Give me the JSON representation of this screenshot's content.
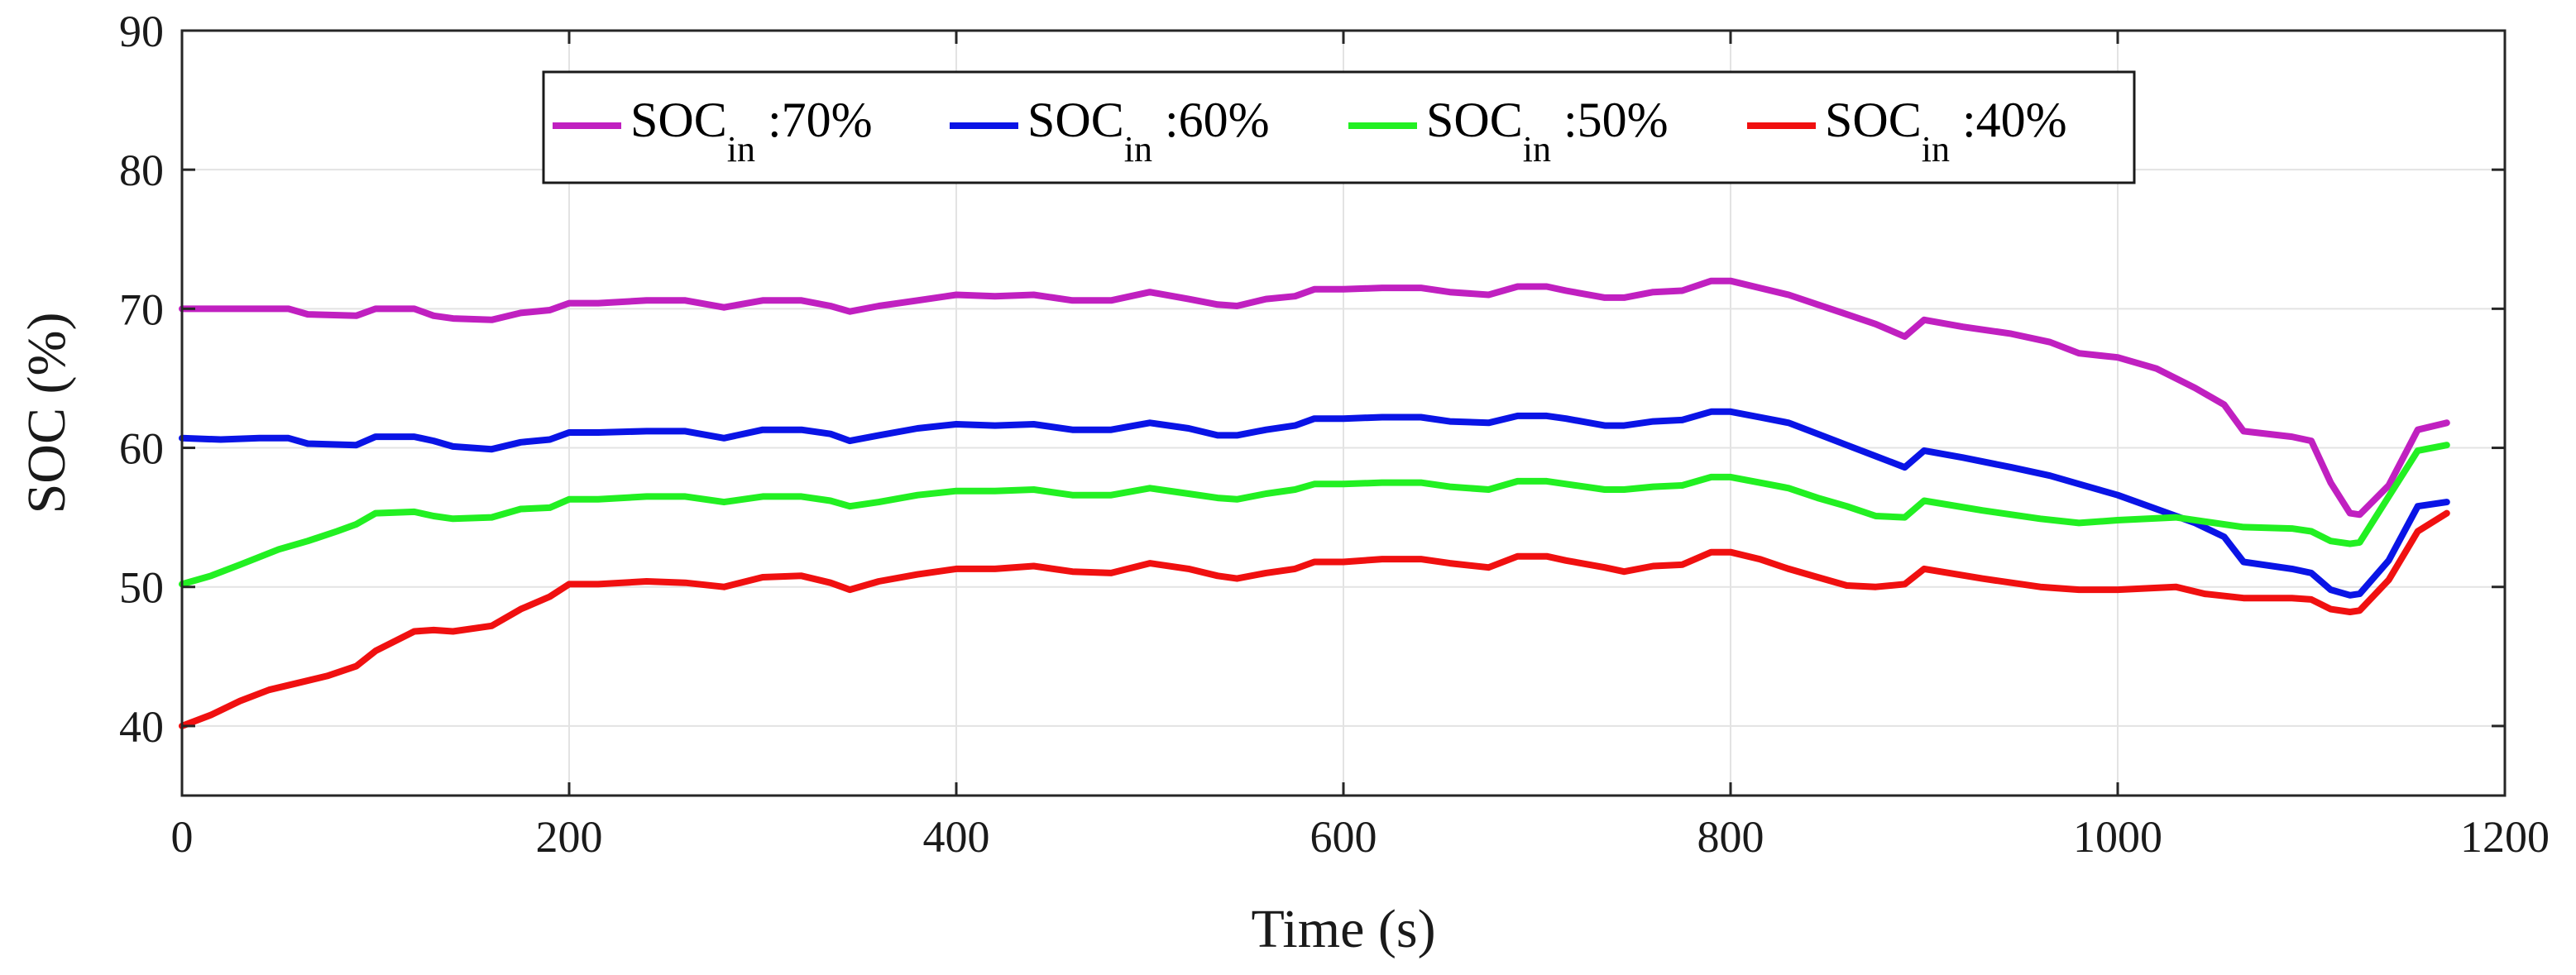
{
  "chart_data": {
    "type": "line",
    "title": "",
    "xlabel": "Time (s)",
    "ylabel": "SOC (%)",
    "xlim": [
      0,
      1200
    ],
    "ylim": [
      35,
      90
    ],
    "xticks": [
      0,
      200,
      400,
      600,
      800,
      1000,
      1200
    ],
    "yticks": [
      40,
      50,
      60,
      70,
      80,
      90
    ],
    "grid": true,
    "legend_position": "top-center",
    "series": [
      {
        "name": "SOC_in :70%",
        "label_main": "SOC",
        "label_sub": "in",
        "label_suffix": " :70%",
        "color": "#c020c0",
        "x": [
          0,
          20,
          40,
          55,
          65,
          90,
          100,
          120,
          130,
          140,
          160,
          175,
          190,
          200,
          215,
          240,
          260,
          280,
          300,
          320,
          335,
          345,
          360,
          380,
          400,
          420,
          440,
          460,
          480,
          500,
          520,
          535,
          545,
          560,
          575,
          585,
          600,
          620,
          640,
          655,
          675,
          690,
          705,
          715,
          735,
          745,
          760,
          775,
          790,
          800,
          815,
          830,
          845,
          860,
          875,
          890,
          900,
          920,
          945,
          965,
          980,
          1000,
          1020,
          1040,
          1055,
          1065,
          1090,
          1100,
          1110,
          1120,
          1125,
          1140,
          1155,
          1170
        ],
        "values": [
          70,
          70,
          70,
          70,
          69.6,
          69.5,
          70,
          70,
          69.5,
          69.3,
          69.2,
          69.7,
          69.9,
          70.4,
          70.4,
          70.6,
          70.6,
          70.1,
          70.6,
          70.6,
          70.2,
          69.8,
          70.2,
          70.6,
          71,
          70.9,
          71,
          70.6,
          70.6,
          71.2,
          70.7,
          70.3,
          70.2,
          70.7,
          70.9,
          71.4,
          71.4,
          71.5,
          71.5,
          71.2,
          71,
          71.6,
          71.6,
          71.3,
          70.8,
          70.8,
          71.2,
          71.3,
          72,
          72,
          71.5,
          71,
          70.3,
          69.6,
          68.9,
          68,
          69.2,
          68.7,
          68.2,
          67.6,
          66.8,
          66.5,
          65.7,
          64.3,
          63.1,
          61.2,
          60.8,
          60.5,
          57.5,
          55.3,
          55.2,
          57.3,
          61.3,
          61.8
        ]
      },
      {
        "name": "SOC_in :60%",
        "label_main": "SOC",
        "label_sub": "in",
        "label_suffix": " :60%",
        "color": "#0a14e6",
        "x": [
          0,
          20,
          40,
          55,
          65,
          90,
          100,
          120,
          130,
          140,
          160,
          175,
          190,
          200,
          215,
          240,
          260,
          280,
          300,
          320,
          335,
          345,
          360,
          380,
          400,
          420,
          440,
          460,
          480,
          500,
          520,
          535,
          545,
          560,
          575,
          585,
          600,
          620,
          640,
          655,
          675,
          690,
          705,
          715,
          735,
          745,
          760,
          775,
          790,
          800,
          815,
          830,
          845,
          860,
          875,
          890,
          900,
          920,
          945,
          965,
          980,
          1000,
          1020,
          1040,
          1055,
          1065,
          1090,
          1100,
          1110,
          1120,
          1125,
          1140,
          1155,
          1170
        ],
        "values": [
          60.7,
          60.6,
          60.7,
          60.7,
          60.3,
          60.2,
          60.8,
          60.8,
          60.5,
          60.1,
          59.9,
          60.4,
          60.6,
          61.1,
          61.1,
          61.2,
          61.2,
          60.7,
          61.3,
          61.3,
          61,
          60.5,
          60.9,
          61.4,
          61.7,
          61.6,
          61.7,
          61.3,
          61.3,
          61.8,
          61.4,
          60.9,
          60.9,
          61.3,
          61.6,
          62.1,
          62.1,
          62.2,
          62.2,
          61.9,
          61.8,
          62.3,
          62.3,
          62.1,
          61.6,
          61.6,
          61.9,
          62,
          62.6,
          62.6,
          62.2,
          61.8,
          61,
          60.2,
          59.4,
          58.6,
          59.8,
          59.3,
          58.6,
          58,
          57.4,
          56.6,
          55.6,
          54.6,
          53.6,
          51.8,
          51.3,
          51,
          49.8,
          49.4,
          49.5,
          51.9,
          55.8,
          56.1
        ]
      },
      {
        "name": "SOC_in :50%",
        "label_main": "SOC",
        "label_sub": "in",
        "label_suffix": " :50%",
        "color": "#22f022",
        "x": [
          0,
          15,
          30,
          50,
          65,
          80,
          90,
          100,
          120,
          130,
          140,
          160,
          175,
          190,
          200,
          215,
          240,
          260,
          280,
          300,
          320,
          335,
          345,
          360,
          380,
          400,
          420,
          440,
          460,
          480,
          500,
          520,
          535,
          545,
          560,
          575,
          585,
          600,
          620,
          640,
          655,
          675,
          690,
          705,
          715,
          735,
          745,
          760,
          775,
          790,
          800,
          815,
          830,
          845,
          860,
          875,
          890,
          900,
          930,
          960,
          980,
          1000,
          1030,
          1045,
          1065,
          1090,
          1100,
          1110,
          1120,
          1125,
          1140,
          1155,
          1170
        ],
        "values": [
          50.2,
          50.8,
          51.6,
          52.7,
          53.3,
          54,
          54.5,
          55.3,
          55.4,
          55.1,
          54.9,
          55,
          55.6,
          55.7,
          56.3,
          56.3,
          56.5,
          56.5,
          56.1,
          56.5,
          56.5,
          56.2,
          55.8,
          56.1,
          56.6,
          56.9,
          56.9,
          57,
          56.6,
          56.6,
          57.1,
          56.7,
          56.4,
          56.3,
          56.7,
          57,
          57.4,
          57.4,
          57.5,
          57.5,
          57.2,
          57,
          57.6,
          57.6,
          57.4,
          57,
          57,
          57.2,
          57.3,
          57.9,
          57.9,
          57.5,
          57.1,
          56.4,
          55.8,
          55.1,
          55,
          56.2,
          55.5,
          54.9,
          54.6,
          54.8,
          55,
          54.7,
          54.3,
          54.2,
          54,
          53.3,
          53.1,
          53.2,
          56.5,
          59.8,
          60.2
        ]
      },
      {
        "name": "SOC_in :40%",
        "label_main": "SOC",
        "label_sub": "in",
        "label_suffix": " :40%",
        "color": "#f01010",
        "x": [
          0,
          15,
          30,
          45,
          60,
          75,
          90,
          100,
          120,
          130,
          140,
          160,
          175,
          190,
          200,
          215,
          240,
          260,
          280,
          300,
          320,
          335,
          345,
          360,
          380,
          400,
          420,
          440,
          460,
          480,
          500,
          520,
          535,
          545,
          560,
          575,
          585,
          600,
          620,
          640,
          655,
          675,
          690,
          705,
          715,
          735,
          745,
          760,
          775,
          790,
          800,
          815,
          830,
          845,
          860,
          875,
          890,
          900,
          930,
          960,
          980,
          1000,
          1030,
          1045,
          1065,
          1090,
          1100,
          1110,
          1120,
          1125,
          1140,
          1155,
          1170
        ],
        "values": [
          40,
          40.8,
          41.8,
          42.6,
          43.1,
          43.6,
          44.3,
          45.4,
          46.8,
          46.9,
          46.8,
          47.2,
          48.4,
          49.3,
          50.2,
          50.2,
          50.4,
          50.3,
          50,
          50.7,
          50.8,
          50.3,
          49.8,
          50.4,
          50.9,
          51.3,
          51.3,
          51.5,
          51.1,
          51,
          51.7,
          51.3,
          50.8,
          50.6,
          51,
          51.3,
          51.8,
          51.8,
          52,
          52,
          51.7,
          51.4,
          52.2,
          52.2,
          51.9,
          51.4,
          51.1,
          51.5,
          51.6,
          52.5,
          52.5,
          52,
          51.3,
          50.7,
          50.1,
          50,
          50.2,
          51.3,
          50.6,
          50,
          49.8,
          49.8,
          50,
          49.5,
          49.2,
          49.2,
          49.1,
          48.4,
          48.2,
          48.3,
          50.5,
          54,
          55.3
        ]
      }
    ]
  }
}
